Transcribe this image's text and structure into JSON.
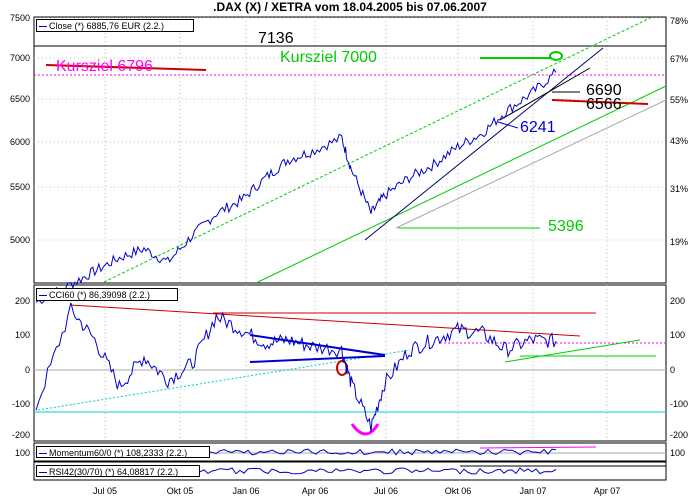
{
  "title": ".DAX (X) / XETRA vom 18.04.2005 bis 07.06.2007",
  "colors": {
    "price": "#0000cc",
    "green": "#00cc00",
    "magenta": "#ff00ff",
    "red": "#cc0000",
    "cyan": "#00cccc",
    "gray": "#aaaaaa"
  },
  "x_ticks": [
    "Jul 05",
    "Okt 05",
    "Jan 06",
    "Apr 06",
    "Jul 06",
    "Okt 06",
    "Jan 07",
    "Apr 07"
  ],
  "price_panel": {
    "legend": "Close (*) 6885,76 EUR (2.2.)",
    "left_ticks": [
      "7500",
      "7000",
      "6500",
      "6000",
      "5500",
      "5000"
    ],
    "right_ticks": [
      "78%",
      "67%",
      "55%",
      "43%",
      "31%",
      "19%"
    ],
    "annotations": {
      "k6796": "Kursziel  6796",
      "k7000": "Kursziel 7000",
      "l7136": "7136",
      "l6690": "6690",
      "l6566": "6566",
      "l6241": "6241",
      "l5396": "5396"
    }
  },
  "cci_panel": {
    "legend": "CCI60 (*) 86,39098 (2.2.)",
    "left_ticks": [
      "200",
      "100",
      "0",
      "-100",
      "-200"
    ],
    "right_ticks": [
      "200",
      "100",
      "0",
      "-100",
      "-200"
    ]
  },
  "mom_panel": {
    "legend": "Momentum60/0 (*) 108,2333 (2.2.)",
    "tick": "100"
  },
  "rsi_panel": {
    "legend": "RSI42(30/70) (*) 64,08817 (2.2.)"
  },
  "chart_data": [
    {
      "type": "line",
      "title": ".DAX (X) / XETRA vom 18.04.2005 bis 07.06.2007",
      "series": [
        {
          "name": "Close",
          "x": [
            "2005-04-18",
            "2005-06-01",
            "2005-07-01",
            "2005-08-01",
            "2005-09-01",
            "2005-10-01",
            "2005-11-01",
            "2005-12-01",
            "2006-01-02",
            "2006-02-01",
            "2006-03-01",
            "2006-04-01",
            "2006-05-08",
            "2006-05-20",
            "2006-06-14",
            "2006-07-01",
            "2006-08-01",
            "2006-09-01",
            "2006-10-01",
            "2006-11-01",
            "2006-12-01",
            "2007-01-02",
            "2007-02-02"
          ],
          "values": [
            4300,
            4500,
            4650,
            4800,
            4900,
            4750,
            5050,
            5300,
            5450,
            5700,
            5900,
            6000,
            6150,
            5800,
            5300,
            5500,
            5700,
            5850,
            6050,
            6200,
            6450,
            6650,
            6886
          ]
        }
      ],
      "ylim": [
        4500,
        7600
      ],
      "horizontal_levels": [
        7136,
        6796,
        6690,
        6566,
        6241,
        5396
      ]
    },
    {
      "type": "line",
      "series": [
        {
          "name": "CCI60",
          "x": [
            "2005-04-18",
            "2005-06-01",
            "2005-07-01",
            "2005-08-01",
            "2005-09-01",
            "2005-10-01",
            "2005-11-01",
            "2005-12-01",
            "2006-01-02",
            "2006-02-01",
            "2006-03-01",
            "2006-04-01",
            "2006-05-08",
            "2006-05-20",
            "2006-06-14",
            "2006-07-01",
            "2006-08-01",
            "2006-09-01",
            "2006-10-01",
            "2006-11-01",
            "2006-12-01",
            "2007-01-02",
            "2007-02-02"
          ],
          "values": [
            -110,
            180,
            90,
            -50,
            40,
            -30,
            20,
            160,
            120,
            80,
            90,
            70,
            60,
            -40,
            -170,
            -40,
            60,
            90,
            120,
            110,
            60,
            90,
            86
          ]
        }
      ],
      "ylim": [
        -220,
        230
      ]
    },
    {
      "type": "line",
      "series": [
        {
          "name": "Momentum60/0",
          "last": 108.2333
        }
      ]
    },
    {
      "type": "line",
      "series": [
        {
          "name": "RSI42(30/70)",
          "last": 64.08817
        }
      ]
    }
  ]
}
